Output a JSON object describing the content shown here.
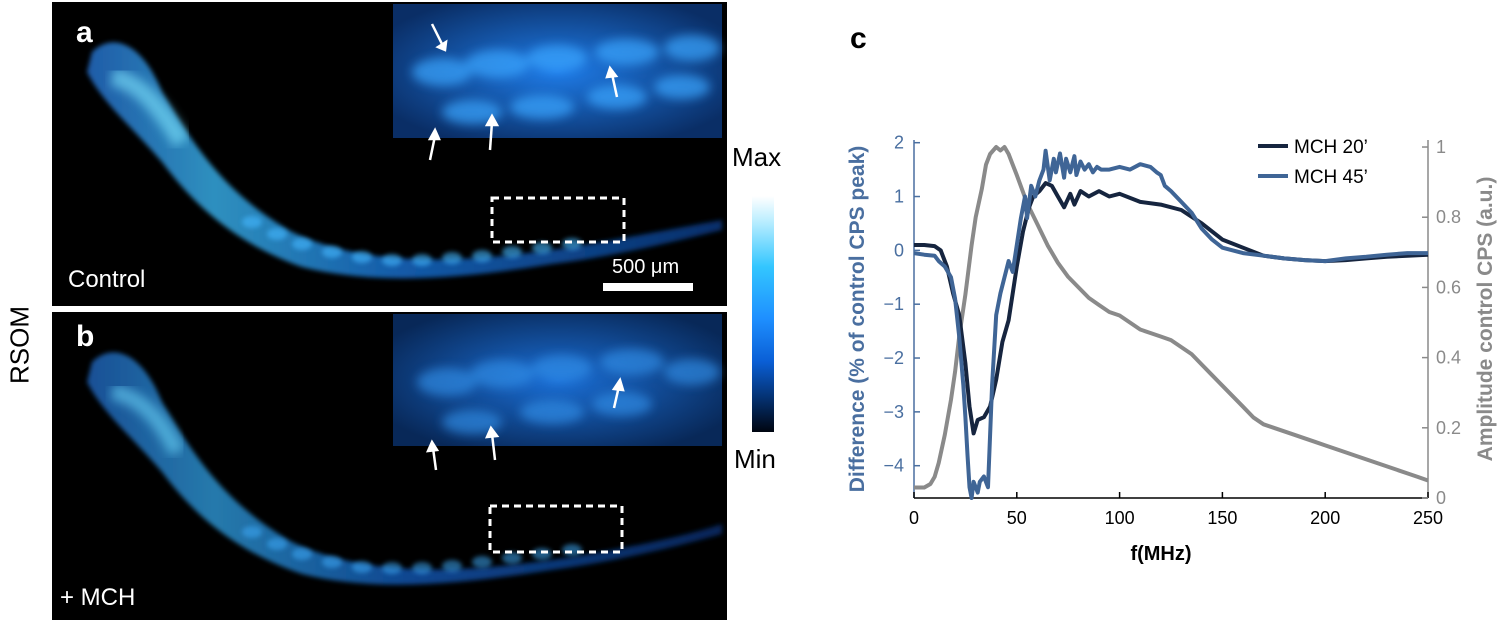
{
  "panels": {
    "a": {
      "letter": "a",
      "condition": "Control",
      "scale_bar": "500 μm"
    },
    "b": {
      "letter": "b",
      "condition": "+ MCH"
    },
    "c": {
      "letter": "c"
    }
  },
  "side_label": "RSOM",
  "colorbar": {
    "max_label": "Max",
    "min_label": "Min"
  },
  "colors": {
    "mch20": "#16253f",
    "mch45": "#3f6596",
    "control": "#8a8a8a",
    "left_axis": "#4a6fa0",
    "right_axis": "#8a8a8a"
  },
  "chart_data": {
    "type": "line",
    "xlabel": "f(MHz)",
    "ylabel_left": "Difference (% of control CPS peak)",
    "ylabel_right": "Amplitude control CPS (a.u.)",
    "xlim": [
      0,
      250
    ],
    "ylim_left": [
      -4.6,
      2.05
    ],
    "ylim_right": [
      0,
      1.02
    ],
    "xticks": [
      0,
      50,
      100,
      150,
      200,
      250
    ],
    "yticks_left": [
      2,
      1,
      0,
      -1,
      -2,
      -3,
      -4
    ],
    "yticks_right": [
      1,
      0.8,
      0.6,
      0.4,
      0.2,
      0
    ],
    "legend_position": "top-right",
    "series": [
      {
        "name": "MCH 20’",
        "axis": "left",
        "x": [
          0,
          5,
          10,
          13,
          16,
          19,
          22,
          25,
          27,
          29,
          31,
          34,
          37,
          40,
          43,
          46,
          48,
          50,
          53,
          56,
          58,
          61,
          64,
          67,
          70,
          73,
          76,
          78,
          81,
          85,
          90,
          95,
          100,
          110,
          120,
          130,
          140,
          150,
          160,
          170,
          180,
          190,
          200,
          210,
          220,
          230,
          240,
          250
        ],
        "values": [
          0.1,
          0.1,
          0.08,
          0.0,
          -0.3,
          -0.8,
          -1.2,
          -2.1,
          -2.9,
          -3.4,
          -3.15,
          -3.1,
          -2.9,
          -2.4,
          -1.7,
          -1.3,
          -0.8,
          -0.3,
          0.35,
          0.8,
          1.0,
          1.1,
          1.25,
          1.2,
          1.0,
          0.8,
          1.05,
          0.85,
          1.1,
          1.0,
          1.1,
          1.0,
          1.05,
          0.9,
          0.85,
          0.75,
          0.5,
          0.2,
          0.05,
          -0.1,
          -0.15,
          -0.18,
          -0.2,
          -0.18,
          -0.15,
          -0.12,
          -0.1,
          -0.08
        ]
      },
      {
        "name": "MCH 45’",
        "axis": "left",
        "x": [
          0,
          5,
          10,
          12,
          15,
          18,
          20,
          22,
          24,
          25,
          26,
          27,
          28,
          29,
          30,
          31,
          32,
          34,
          36,
          38,
          40,
          42,
          44,
          46,
          48,
          50,
          52,
          54,
          55,
          57,
          59,
          61,
          63,
          64,
          66,
          68,
          69,
          71,
          73,
          74,
          76,
          78,
          79,
          81,
          83,
          85,
          87,
          89,
          91,
          95,
          100,
          105,
          110,
          115,
          118,
          120,
          122,
          125,
          130,
          135,
          140,
          145,
          150,
          160,
          170,
          180,
          190,
          200,
          210,
          220,
          230,
          240,
          250
        ],
        "values": [
          -0.05,
          -0.08,
          -0.1,
          -0.2,
          -0.3,
          -0.5,
          -0.9,
          -1.6,
          -2.5,
          -3.1,
          -3.8,
          -4.4,
          -4.6,
          -4.3,
          -4.4,
          -4.5,
          -4.3,
          -4.2,
          -4.4,
          -2.5,
          -1.2,
          -0.8,
          -0.5,
          -0.2,
          -0.4,
          0.1,
          0.6,
          1.0,
          0.6,
          1.2,
          1.0,
          1.3,
          1.5,
          1.85,
          1.3,
          1.7,
          1.45,
          1.8,
          1.35,
          1.7,
          1.45,
          1.75,
          1.4,
          1.65,
          1.5,
          1.6,
          1.45,
          1.55,
          1.5,
          1.5,
          1.55,
          1.5,
          1.6,
          1.55,
          1.45,
          1.4,
          1.2,
          1.1,
          0.9,
          0.7,
          0.4,
          0.2,
          0.05,
          -0.05,
          -0.1,
          -0.15,
          -0.18,
          -0.2,
          -0.15,
          -0.12,
          -0.08,
          -0.05,
          -0.05
        ]
      },
      {
        "name": "",
        "axis": "right",
        "x": [
          0,
          5,
          8,
          10,
          12,
          15,
          18,
          20,
          22,
          25,
          28,
          30,
          33,
          35,
          37,
          40,
          42,
          44,
          46,
          48,
          50,
          55,
          60,
          65,
          70,
          75,
          80,
          85,
          90,
          95,
          100,
          105,
          110,
          115,
          120,
          125,
          130,
          135,
          140,
          145,
          150,
          155,
          160,
          165,
          170,
          175,
          180,
          185,
          190,
          195,
          200,
          205,
          210,
          215,
          220,
          225,
          230,
          235,
          240,
          245,
          250
        ],
        "values": [
          0.03,
          0.03,
          0.04,
          0.06,
          0.1,
          0.18,
          0.28,
          0.36,
          0.46,
          0.58,
          0.72,
          0.8,
          0.88,
          0.95,
          0.98,
          1.0,
          0.99,
          1.0,
          0.98,
          0.95,
          0.92,
          0.84,
          0.78,
          0.72,
          0.67,
          0.63,
          0.6,
          0.57,
          0.55,
          0.53,
          0.52,
          0.5,
          0.48,
          0.47,
          0.46,
          0.45,
          0.43,
          0.41,
          0.38,
          0.35,
          0.32,
          0.29,
          0.26,
          0.23,
          0.21,
          0.2,
          0.19,
          0.18,
          0.17,
          0.16,
          0.15,
          0.14,
          0.13,
          0.12,
          0.11,
          0.1,
          0.09,
          0.08,
          0.07,
          0.06,
          0.05
        ]
      }
    ]
  }
}
